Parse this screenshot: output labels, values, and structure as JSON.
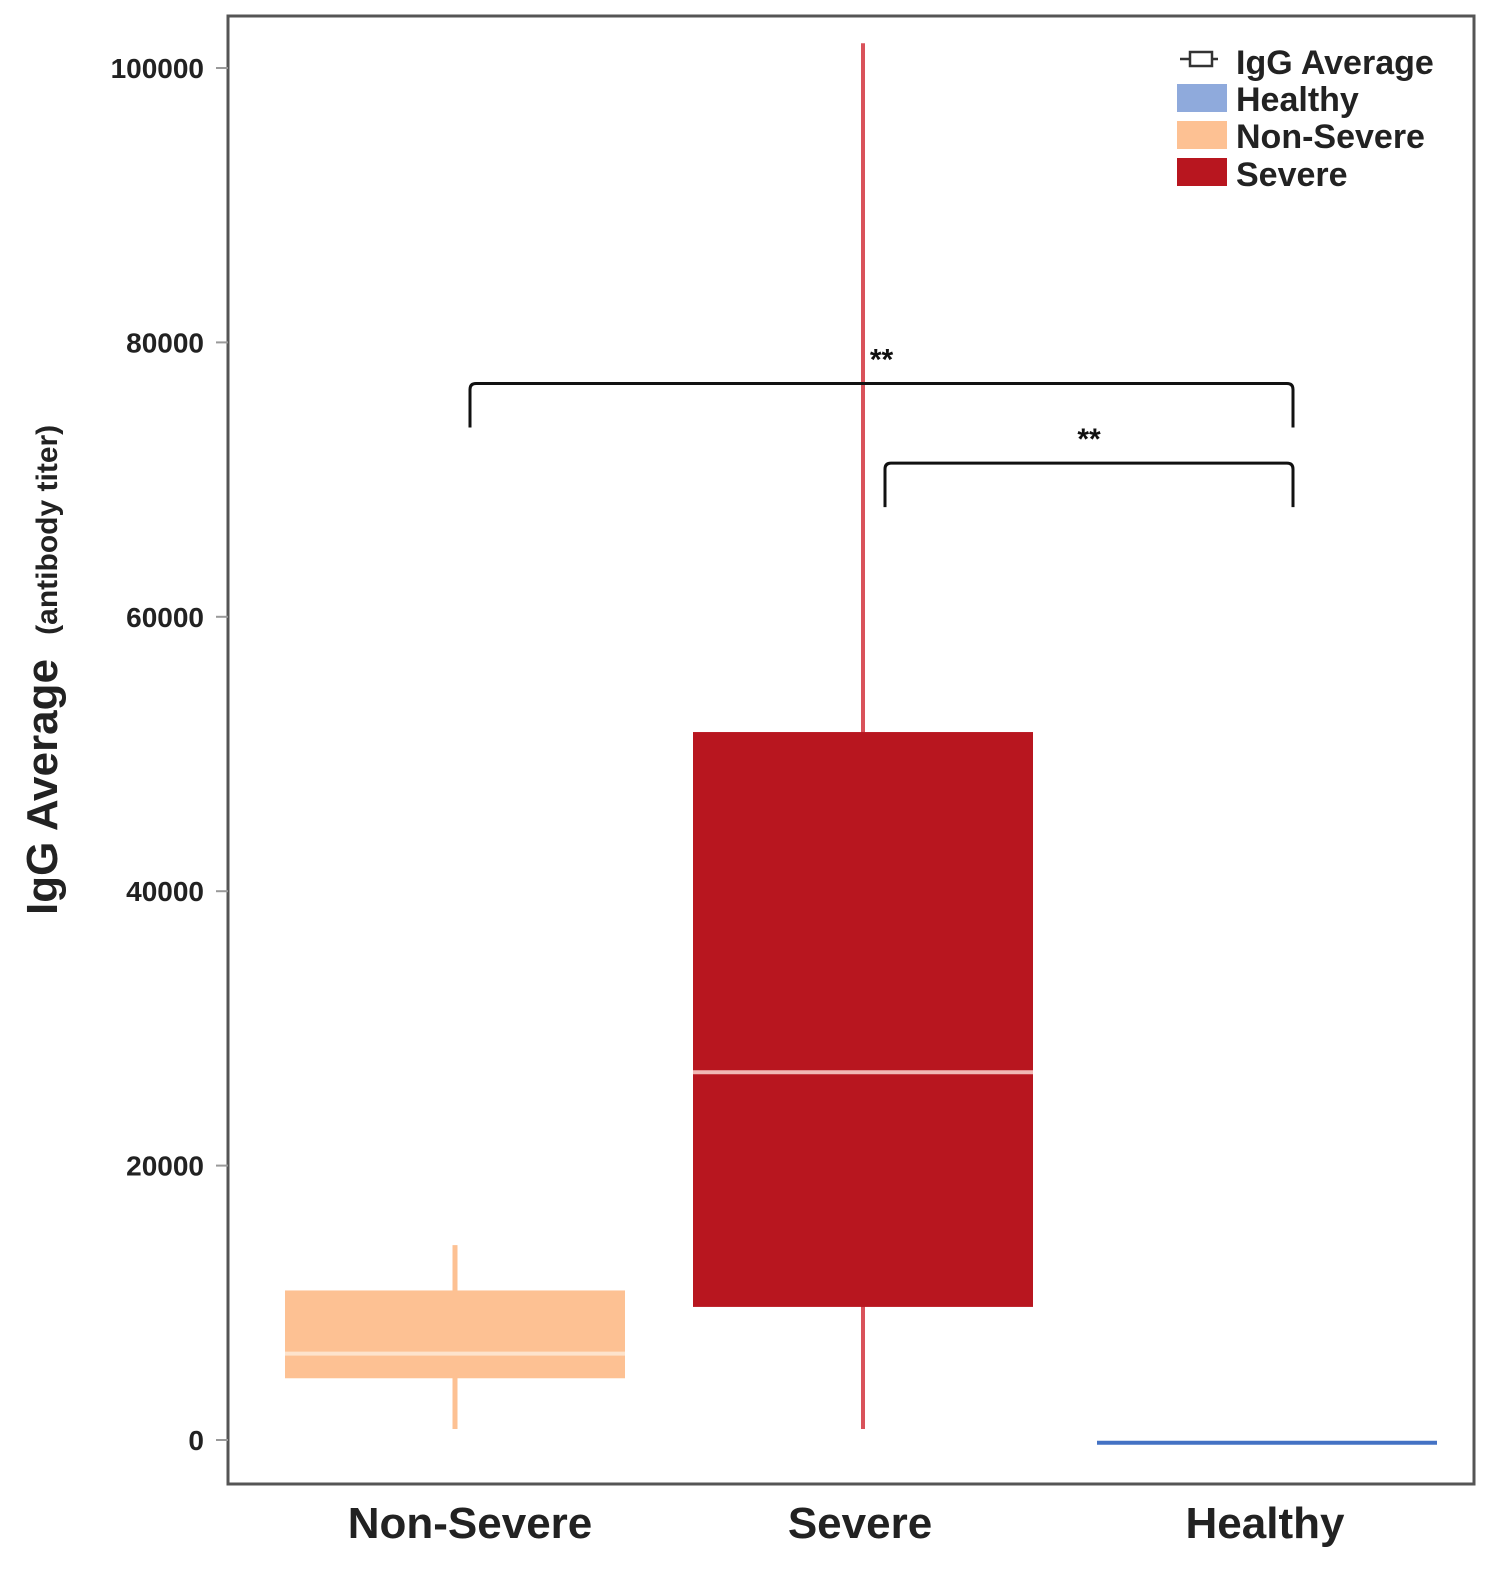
{
  "chart_data": {
    "type": "box",
    "title": "",
    "xlabel": "",
    "ylabel": "IgG Average",
    "ylabel_suffix": "(antibody titer)",
    "ylim": [
      -5000,
      104000
    ],
    "yticks": [
      0,
      20000,
      40000,
      60000,
      80000,
      100000
    ],
    "ytick_labels": [
      "0",
      "20000",
      "40000",
      "60000",
      "80000",
      "100000"
    ],
    "categories": [
      "Non-Severe",
      "Severe",
      "Healthy"
    ],
    "boxes": [
      {
        "name": "Non-Severe",
        "color": "#FDC193",
        "median_color": "#FDE3CC",
        "whisker_low": 800,
        "q1": 4500,
        "median": 6300,
        "q3": 10900,
        "whisker_high": 14200
      },
      {
        "name": "Severe",
        "color": "#B8161F",
        "median_color": "#F1B8B5",
        "whisker_color": "#D9525A",
        "whisker_low": 800,
        "q1": 9700,
        "median": 26800,
        "q3": 51600,
        "whisker_high": 101800
      },
      {
        "name": "Healthy",
        "color": "#4472C4",
        "whisker_low": -200,
        "q1": -200,
        "median": -200,
        "q3": -200,
        "whisker_high": -200
      }
    ],
    "significance": [
      {
        "from": "Non-Severe",
        "to": "Healthy",
        "label": "**",
        "y": 77000
      },
      {
        "from": "Severe",
        "to": "Healthy",
        "label": "**",
        "y": 71200
      }
    ],
    "legend": {
      "placement": "top-right",
      "title": "IgG Average",
      "items": [
        {
          "label": "Healthy",
          "color": "#8FAADC"
        },
        {
          "label": "Non-Severe",
          "color": "#FDC193"
        },
        {
          "label": "Severe",
          "color": "#B8161F"
        }
      ]
    }
  }
}
